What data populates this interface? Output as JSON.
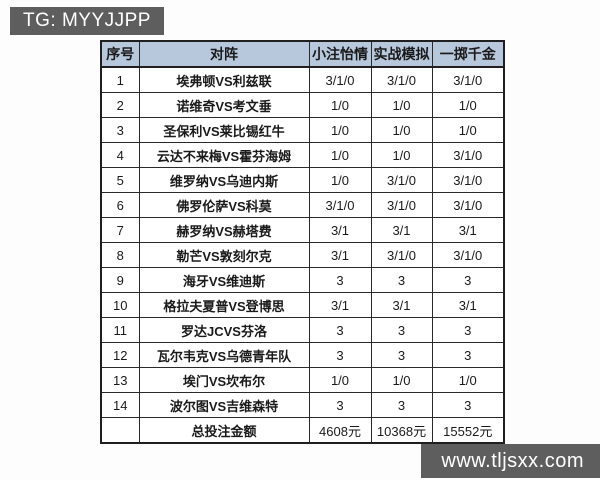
{
  "top_badge": {
    "label": "TG: MYYJJPP",
    "bg": "#5e5e5e",
    "color": "#ffffff"
  },
  "bottom_badge": {
    "label": "www.tljsxx.com",
    "bg": "#5e5e5e",
    "color": "#ffffff"
  },
  "table": {
    "header_bg": "#b7c7dc",
    "border_color": "#2a2a2a",
    "columns": [
      "序号",
      "对阵",
      "小注怡情",
      "实战模拟",
      "一掷千金"
    ],
    "rows": [
      {
        "no": "1",
        "match": "埃弗顿VS利兹联",
        "v1": "3/1/0",
        "v2": "3/1/0",
        "v3": "3/1/0"
      },
      {
        "no": "2",
        "match": "诺维奇VS考文垂",
        "v1": "1/0",
        "v2": "1/0",
        "v3": "1/0"
      },
      {
        "no": "3",
        "match": "圣保利VS莱比锡红牛",
        "v1": "1/0",
        "v2": "1/0",
        "v3": "1/0"
      },
      {
        "no": "4",
        "match": "云达不来梅VS霍芬海姆",
        "v1": "1/0",
        "v2": "1/0",
        "v3": "3/1/0"
      },
      {
        "no": "5",
        "match": "维罗纳VS乌迪内斯",
        "v1": "1/0",
        "v2": "3/1/0",
        "v3": "3/1/0"
      },
      {
        "no": "6",
        "match": "佛罗伦萨VS科莫",
        "v1": "3/1/0",
        "v2": "3/1/0",
        "v3": "3/1/0"
      },
      {
        "no": "7",
        "match": "赫罗纳VS赫塔费",
        "v1": "3/1",
        "v2": "3/1",
        "v3": "3/1"
      },
      {
        "no": "8",
        "match": "勒芒VS敦刻尔克",
        "v1": "3/1",
        "v2": "3/1/0",
        "v3": "3/1/0"
      },
      {
        "no": "9",
        "match": "海牙VS维迪斯",
        "v1": "3",
        "v2": "3",
        "v3": "3"
      },
      {
        "no": "10",
        "match": "格拉夫夏普VS登博思",
        "v1": "3/1",
        "v2": "3/1",
        "v3": "3/1"
      },
      {
        "no": "11",
        "match": "罗达JCVS芬洛",
        "v1": "3",
        "v2": "3",
        "v3": "3"
      },
      {
        "no": "12",
        "match": "瓦尔韦克VS乌德青年队",
        "v1": "3",
        "v2": "3",
        "v3": "3"
      },
      {
        "no": "13",
        "match": "埃门VS坎布尔",
        "v1": "1/0",
        "v2": "1/0",
        "v3": "1/0"
      },
      {
        "no": "14",
        "match": "波尔图VS吉维森特",
        "v1": "3",
        "v2": "3",
        "v3": "3"
      }
    ],
    "footer": {
      "no": "",
      "label": "总投注金额",
      "v1": "4608元",
      "v2": "10368元",
      "v3": "15552元"
    }
  }
}
